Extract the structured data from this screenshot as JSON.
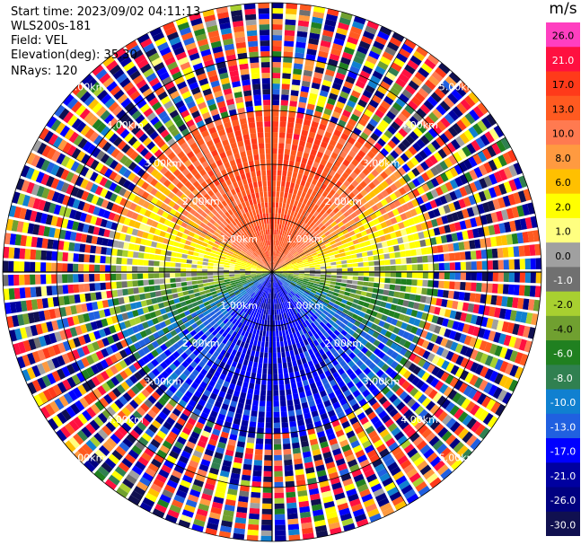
{
  "header": {
    "start_time": "Start time: 2023/09/02 04:11:13",
    "station": "WLS200s-181",
    "field": "Field: VEL",
    "elevation": "Elevation(deg): 35.30",
    "nrays": "NRays: 120"
  },
  "colorbar": {
    "unit": "m/s",
    "ticks": [
      "26.0",
      "21.0",
      "17.0",
      "13.0",
      "10.0",
      "8.0",
      "6.0",
      "2.0",
      "1.0",
      "0.0",
      "-1.0",
      "-2.0",
      "-4.0",
      "-6.0",
      "-8.0",
      "-10.0",
      "-13.0",
      "-17.0",
      "-21.0",
      "-26.0",
      "-30.0"
    ],
    "colors": [
      "#ff3fc0",
      "#ff1040",
      "#ff3a1a",
      "#ff5a20",
      "#ff7a50",
      "#ff9a40",
      "#ffc000",
      "#ffff00",
      "#ffff80",
      "#a0a0a0",
      "#707070",
      "#a8d030",
      "#70a030",
      "#208020",
      "#308050",
      "#1080d0",
      "#2060e0",
      "#0000ff",
      "#0000a0",
      "#000080",
      "#101050"
    ]
  },
  "chart_data": {
    "type": "ppi",
    "field": "VEL",
    "units": "m/s",
    "nrays": 120,
    "max_range_km": 5.0,
    "ring_labels": [
      "1.00km",
      "2.00km",
      "3.00km",
      "4.00km",
      "5.00km"
    ],
    "vmin": -30,
    "vmax": 26,
    "velocity_pattern": {
      "inbound_direction": "south",
      "outbound_direction": "north",
      "peak_outbound_mps": 17,
      "peak_inbound_mps": -17,
      "clean_range_km": 3.0
    }
  }
}
